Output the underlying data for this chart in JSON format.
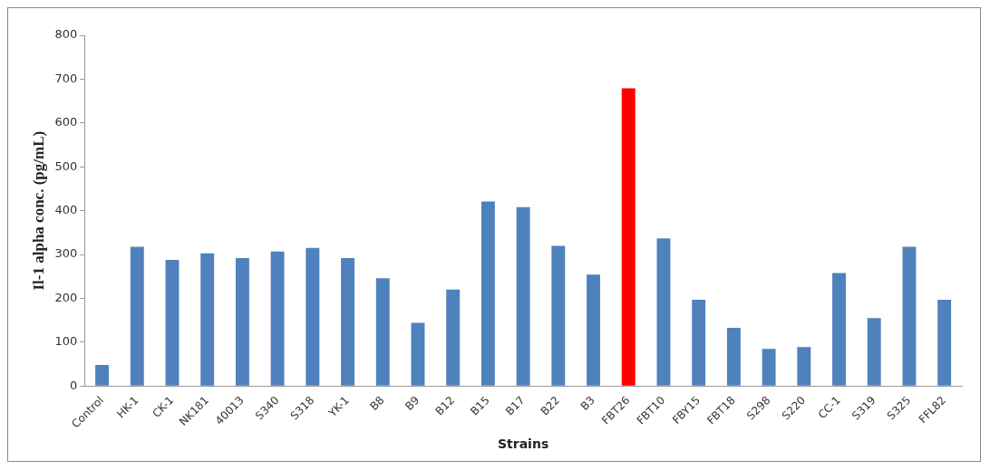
{
  "chart_data": {
    "type": "bar",
    "xlabel": "Strains",
    "ylabel": "Il-1 alpha conc. (pg/mL)",
    "categories": [
      "Control",
      "HK-1",
      "CK-1",
      "NK181",
      "40013",
      "S340",
      "S318",
      "YK-1",
      "B8",
      "B9",
      "B12",
      "B15",
      "B17",
      "B22",
      "B3",
      "FBT26",
      "FBT10",
      "FBY15",
      "FBT18",
      "S298",
      "S220",
      "CC-1",
      "S319",
      "S325",
      "FFL82"
    ],
    "values": [
      48,
      318,
      288,
      303,
      292,
      307,
      315,
      292,
      246,
      144,
      220,
      421,
      408,
      320,
      254,
      679,
      337,
      197,
      133,
      85,
      89,
      258,
      155,
      318,
      197
    ],
    "colors": [
      "#4f81bd",
      "#4f81bd",
      "#4f81bd",
      "#4f81bd",
      "#4f81bd",
      "#4f81bd",
      "#4f81bd",
      "#4f81bd",
      "#4f81bd",
      "#4f81bd",
      "#4f81bd",
      "#4f81bd",
      "#4f81bd",
      "#4f81bd",
      "#4f81bd",
      "#ff0000",
      "#4f81bd",
      "#4f81bd",
      "#4f81bd",
      "#4f81bd",
      "#4f81bd",
      "#4f81bd",
      "#4f81bd",
      "#4f81bd",
      "#4f81bd"
    ],
    "ylim": [
      0,
      800
    ],
    "yticks": [
      0,
      100,
      200,
      300,
      400,
      500,
      600,
      700,
      800
    ],
    "grid": false,
    "legend": false
  }
}
